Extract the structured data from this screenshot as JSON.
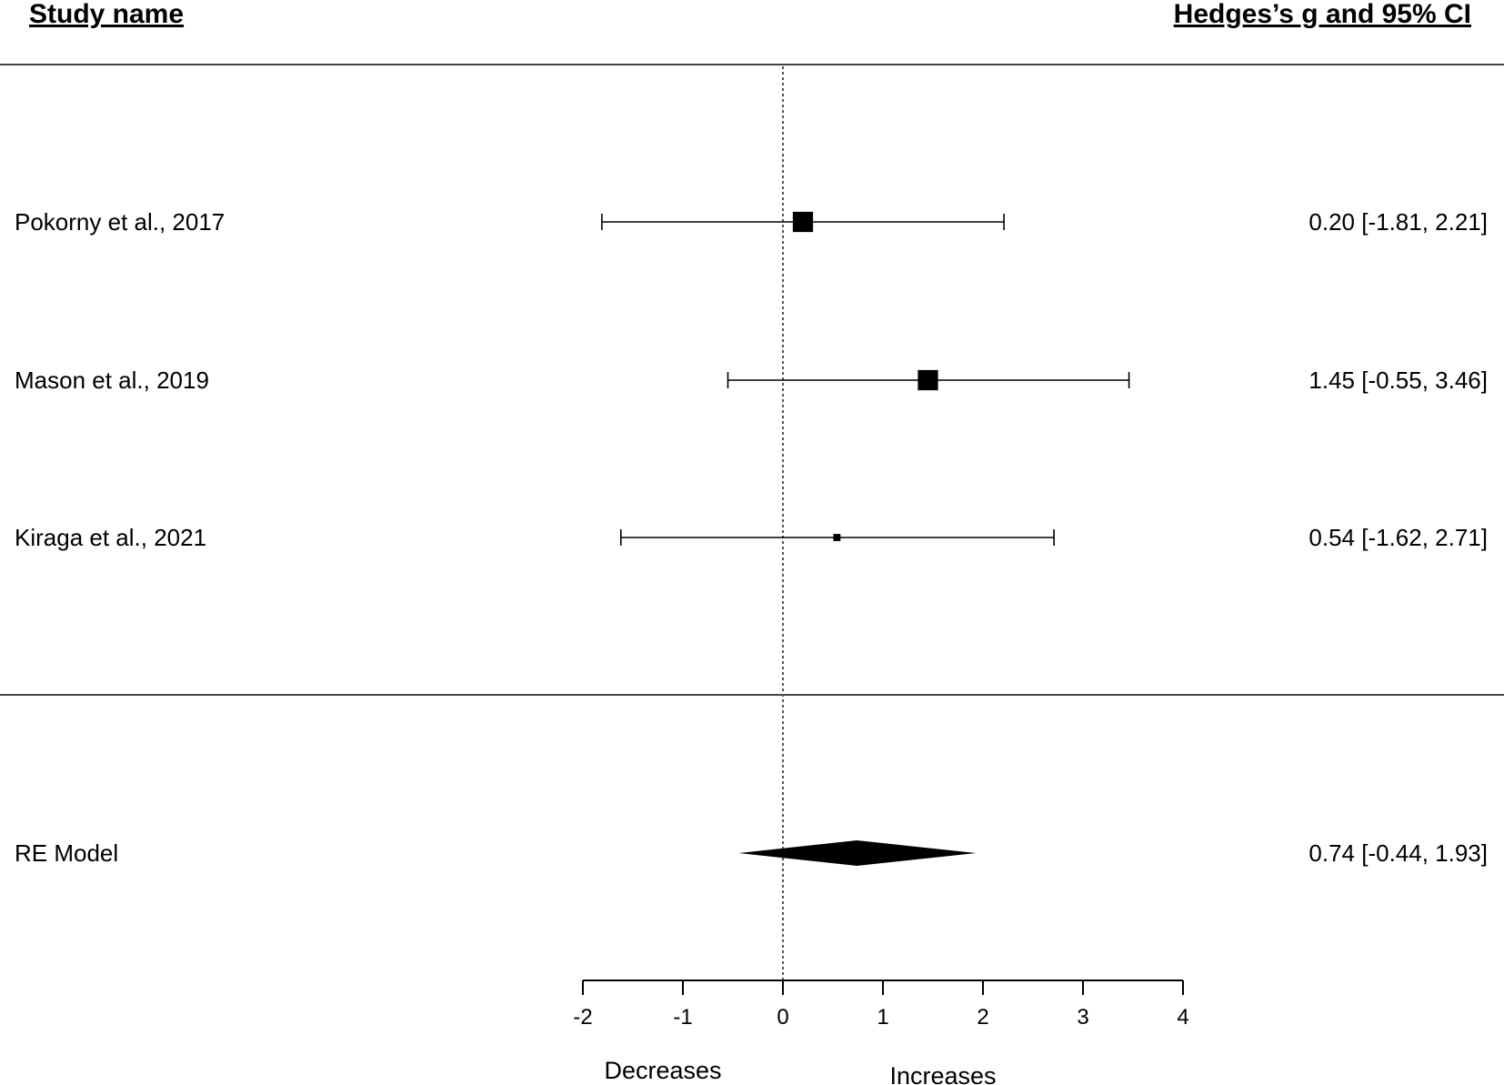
{
  "chart_data": {
    "type": "forest",
    "headers": {
      "left": "Study name",
      "right": "Hedges’s g and 95% CI"
    },
    "studies": [
      {
        "name": "Pokorny et al., 2017",
        "estimate": 0.2,
        "lower": -1.81,
        "upper": 2.21,
        "weight": 0.38,
        "ci_label": "0.20 [-1.81, 2.21]"
      },
      {
        "name": "Mason et al., 2019",
        "estimate": 1.45,
        "lower": -0.55,
        "upper": 3.46,
        "weight": 0.38,
        "ci_label": "1.45 [-0.55, 3.46]"
      },
      {
        "name": "Kiraga et al., 2021",
        "estimate": 0.54,
        "lower": -1.62,
        "upper": 2.71,
        "weight": 0.08,
        "ci_label": "0.54 [-1.62, 2.71]"
      }
    ],
    "summary": {
      "name": "RE Model",
      "estimate": 0.74,
      "lower": -0.44,
      "upper": 1.93,
      "ci_label": "0.74 [-0.44, 1.93]"
    },
    "xaxis": {
      "ticks": [
        -2,
        -1,
        0,
        1,
        2,
        3,
        4
      ],
      "tick_labels": [
        "-2",
        "-1",
        "0",
        "1",
        "2",
        "3",
        "4"
      ],
      "range": [
        -2,
        4
      ]
    },
    "reference_line": 0,
    "direction_labels": {
      "left": "Decreases",
      "right": "Increases"
    }
  }
}
